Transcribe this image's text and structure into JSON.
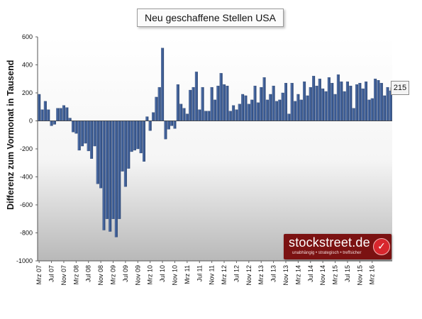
{
  "chart_data": {
    "type": "bar",
    "title": "Neu geschaffene Stellen USA",
    "ylabel": "Differenz zum Vormonat in Tausend",
    "xlabel": "",
    "ylim": [
      -1000,
      600
    ],
    "yticks": [
      600,
      400,
      200,
      0,
      -200,
      -400,
      -600,
      -800,
      -1000
    ],
    "x_tick_labels": [
      "Mrz 07",
      "Jul 07",
      "Nov 07",
      "Mrz 08",
      "Jul 08",
      "Nov 08",
      "Mrz 09",
      "Jul 09",
      "Nov 09",
      "Mrz 10",
      "Jul 10",
      "Nov 10",
      "Mrz 11",
      "Jul 11",
      "Nov 11",
      "Mrz 12",
      "Jul 12",
      "Nov 12",
      "Mrz 13",
      "Jul 13",
      "Nov 13",
      "Mrz 14",
      "Jul 14",
      "Nov 14",
      "Mrz 15",
      "Jul 15",
      "Nov 15",
      "Mrz 16"
    ],
    "x_start": "Mrz 07",
    "x_end": "Mrz 16",
    "series": [
      {
        "values": [
          190,
          80,
          140,
          80,
          -35,
          -25,
          90,
          90,
          110,
          95,
          20,
          -80,
          -90,
          -210,
          -180,
          -160,
          -215,
          -270,
          -180,
          -450,
          -480,
          -780,
          -700,
          -790,
          -700,
          -830,
          -700,
          -360,
          -470,
          -340,
          -220,
          -210,
          -200,
          -230,
          -290,
          30,
          -70,
          60,
          170,
          240,
          520,
          -130,
          -60,
          -35,
          -55,
          260,
          120,
          90,
          50,
          220,
          240,
          350,
          80,
          240,
          70,
          70,
          240,
          150,
          250,
          340,
          260,
          250,
          70,
          110,
          80,
          120,
          190,
          180,
          120,
          150,
          250,
          130,
          240,
          310,
          150,
          190,
          250,
          140,
          150,
          200,
          270,
          50,
          270,
          140,
          190,
          150,
          280,
          180,
          240,
          320,
          250,
          300,
          230,
          210,
          310,
          270,
          190,
          330,
          280,
          210,
          280,
          250,
          90,
          260,
          270,
          230,
          280,
          150,
          160,
          300,
          290,
          270,
          180,
          240,
          215
        ]
      }
    ],
    "callout_value": "215"
  },
  "watermark": {
    "brand": "stockstreet.de",
    "tagline": "unabhängig • strategisch • treffsicher",
    "check": "✓"
  }
}
